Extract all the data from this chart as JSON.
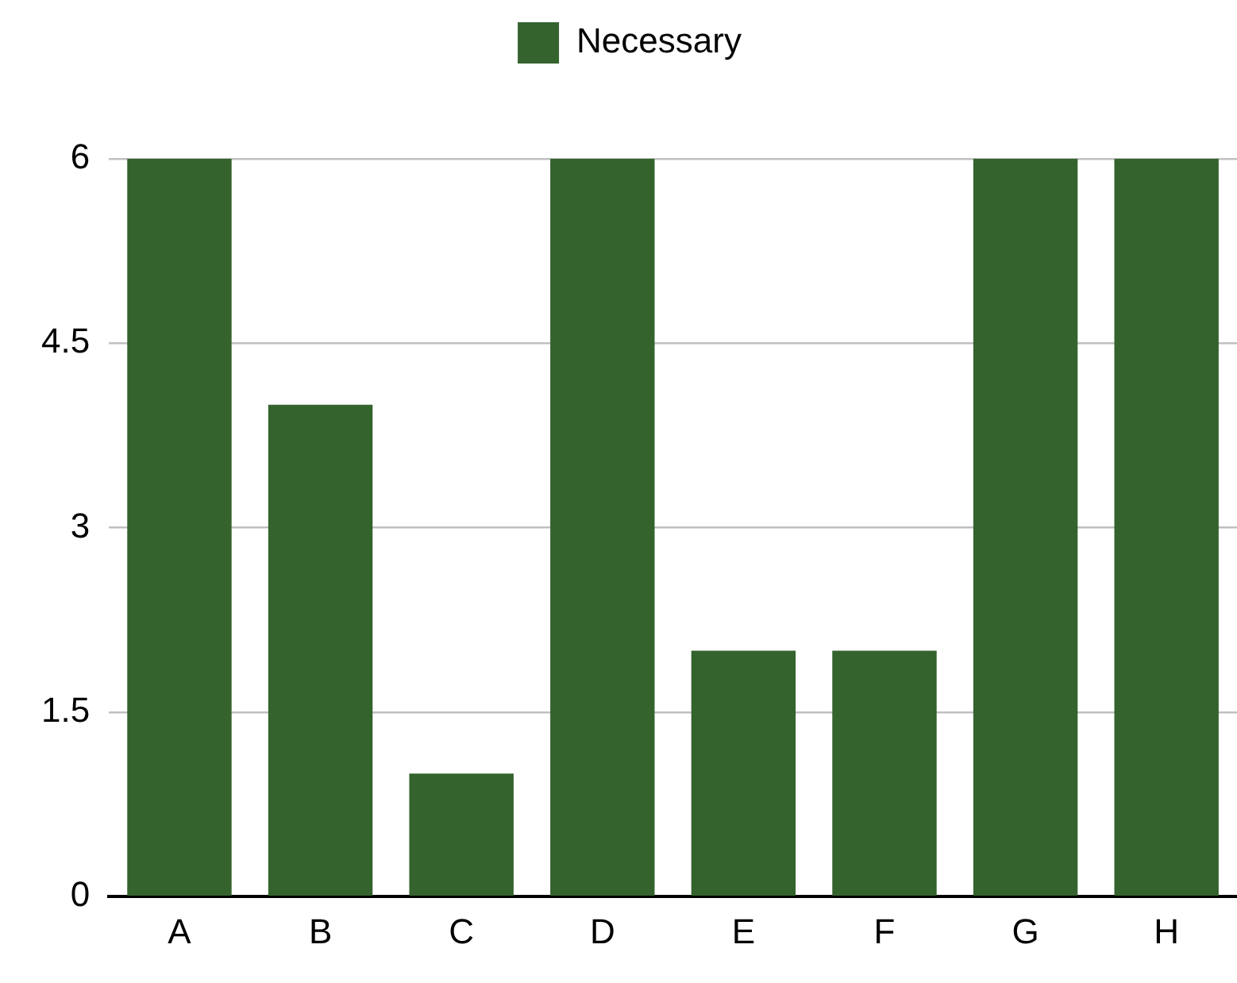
{
  "chart_data": {
    "type": "bar",
    "categories": [
      "A",
      "B",
      "C",
      "D",
      "E",
      "F",
      "G",
      "H"
    ],
    "series": [
      {
        "name": "Necessary",
        "color": "#34632d",
        "values": [
          6,
          4,
          1,
          6,
          2,
          2,
          6,
          6
        ]
      }
    ],
    "ylim": [
      0,
      6
    ],
    "yticks": [
      0,
      1.5,
      3,
      4.5,
      6
    ],
    "grid": "y",
    "legend": "top"
  }
}
